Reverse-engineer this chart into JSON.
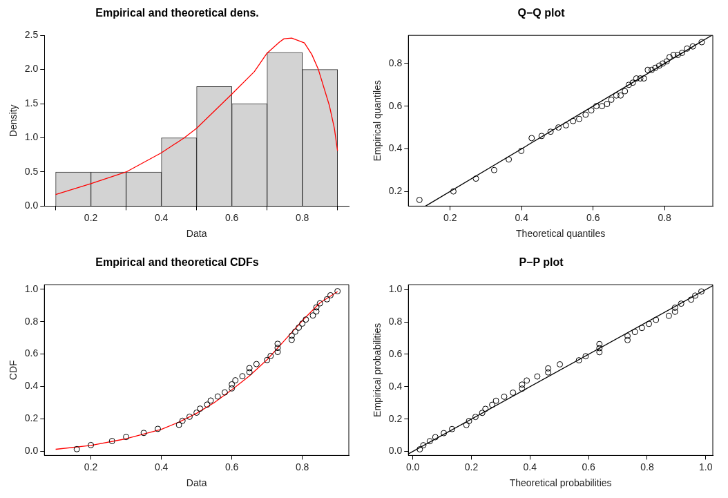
{
  "chart_data": [
    {
      "type": "histogram",
      "title": "Empirical and theoretical dens.",
      "xlabel": "Data",
      "ylabel": "Density",
      "xlim": [
        0.068,
        0.932
      ],
      "ylim": [
        0,
        2.5
      ],
      "xticks": [
        0.2,
        0.4,
        0.6,
        0.8
      ],
      "yticks": [
        {
          "value": 0,
          "label": "0.0"
        },
        0.5,
        {
          "value": 1,
          "label": "1.0"
        },
        1.5,
        {
          "value": 2,
          "label": "2.0"
        },
        2.5
      ],
      "grid": false,
      "series": [
        {
          "type": "histogram",
          "color": "#d3d3d3",
          "bins": [
            0.1,
            0.2,
            0.3,
            0.4,
            0.5,
            0.6,
            0.7,
            0.8,
            0.9
          ],
          "values": [
            0.5,
            0.5,
            0.5,
            1,
            1.75,
            1.5,
            2.25,
            2
          ]
        },
        {
          "type": "line",
          "color": "#ff0000",
          "x": [
            0.1,
            0.2,
            0.3,
            0.4,
            0.465,
            0.5,
            0.6,
            0.664,
            0.7,
            0.735,
            0.748,
            0.77,
            0.806,
            0.827,
            0.845,
            0.877,
            0.891,
            0.9
          ],
          "values": [
            0.17,
            0.33,
            0.5,
            0.78,
            1.0,
            1.14,
            1.64,
            1.97,
            2.24,
            2.4,
            2.45,
            2.46,
            2.39,
            2.22,
            2.01,
            1.47,
            1.14,
            0.81
          ]
        }
      ]
    },
    {
      "type": "scatter",
      "title": "Q−Q plot",
      "xlabel": "Theoretical quantiles",
      "ylabel": "Empirical quantiles",
      "xlim": [
        0.083,
        0.935
      ],
      "ylim": [
        0.131,
        0.932
      ],
      "xticks": [
        0.2,
        0.4,
        0.6,
        0.8
      ],
      "yticks": [
        0.2,
        0.4,
        0.6,
        0.8
      ],
      "grid": false,
      "series": [
        {
          "type": "scatter",
          "marker": "circle",
          "color": "#000000",
          "x": [
            0.114,
            0.209,
            0.272,
            0.323,
            0.364,
            0.399,
            0.428,
            0.456,
            0.481,
            0.503,
            0.524,
            0.544,
            0.561,
            0.579,
            0.595,
            0.609,
            0.625,
            0.639,
            0.651,
            0.665,
            0.677,
            0.689,
            0.7,
            0.711,
            0.721,
            0.732,
            0.742,
            0.753,
            0.764,
            0.774,
            0.785,
            0.795,
            0.806,
            0.814,
            0.825,
            0.837,
            0.849,
            0.863,
            0.879,
            0.904
          ],
          "values": [
            0.16,
            0.2,
            0.26,
            0.3,
            0.35,
            0.39,
            0.45,
            0.46,
            0.48,
            0.5,
            0.51,
            0.53,
            0.54,
            0.56,
            0.58,
            0.6,
            0.6,
            0.61,
            0.63,
            0.65,
            0.65,
            0.67,
            0.7,
            0.71,
            0.73,
            0.73,
            0.73,
            0.77,
            0.77,
            0.78,
            0.79,
            0.8,
            0.81,
            0.83,
            0.84,
            0.84,
            0.85,
            0.87,
            0.88,
            0.9
          ]
        },
        {
          "type": "line",
          "color": "#000000",
          "x": [
            0.131,
            0.932
          ],
          "values": [
            0.131,
            0.932
          ]
        }
      ]
    },
    {
      "type": "scatter",
      "title": "Empirical and theoretical CDFs",
      "xlabel": "Data",
      "ylabel": "CDF",
      "xlim": [
        0.068,
        0.932
      ],
      "ylim": [
        -0.026,
        1.028
      ],
      "xticks": [
        0.2,
        0.4,
        0.6,
        0.8
      ],
      "yticks": [
        {
          "value": 0,
          "label": "0.0"
        },
        0.2,
        0.4,
        0.6,
        0.8,
        {
          "value": 1,
          "label": "1.0"
        }
      ],
      "grid": false,
      "series": [
        {
          "type": "line",
          "color": "#ff0000",
          "x": [
            0.1,
            0.2,
            0.3,
            0.4,
            0.45,
            0.5,
            0.55,
            0.6,
            0.65,
            0.7,
            0.75,
            0.8,
            0.85,
            0.9
          ],
          "values": [
            0.012,
            0.036,
            0.077,
            0.135,
            0.18,
            0.234,
            0.3,
            0.38,
            0.465,
            0.565,
            0.685,
            0.806,
            0.916,
            0.985
          ]
        },
        {
          "type": "scatter",
          "marker": "circle",
          "color": "#000000",
          "x": [
            0.16,
            0.2,
            0.26,
            0.3,
            0.35,
            0.39,
            0.45,
            0.46,
            0.48,
            0.5,
            0.51,
            0.53,
            0.54,
            0.56,
            0.58,
            0.6,
            0.6,
            0.61,
            0.63,
            0.65,
            0.65,
            0.67,
            0.7,
            0.71,
            0.73,
            0.73,
            0.73,
            0.77,
            0.77,
            0.78,
            0.79,
            0.8,
            0.81,
            0.83,
            0.84,
            0.84,
            0.85,
            0.87,
            0.88,
            0.9
          ],
          "values": [
            0.013,
            0.038,
            0.063,
            0.088,
            0.113,
            0.138,
            0.163,
            0.188,
            0.213,
            0.238,
            0.263,
            0.288,
            0.313,
            0.338,
            0.363,
            0.388,
            0.413,
            0.438,
            0.463,
            0.488,
            0.513,
            0.538,
            0.563,
            0.588,
            0.613,
            0.638,
            0.663,
            0.688,
            0.713,
            0.738,
            0.763,
            0.788,
            0.813,
            0.838,
            0.863,
            0.888,
            0.913,
            0.938,
            0.963,
            0.988
          ]
        }
      ]
    },
    {
      "type": "scatter",
      "title": "P−P plot",
      "xlabel": "Theoretical probabilities",
      "ylabel": "Empirical probabilities",
      "xlim": [
        -0.015,
        1.024
      ],
      "ylim": [
        -0.025,
        1.03
      ],
      "xticks": [
        {
          "value": 0,
          "label": "0.0"
        },
        0.2,
        0.4,
        0.6,
        0.8,
        {
          "value": 1,
          "label": "1.0"
        }
      ],
      "yticks": [
        {
          "value": 0,
          "label": "0.0"
        },
        0.2,
        0.4,
        0.6,
        0.8,
        {
          "value": 1,
          "label": "1.0"
        }
      ],
      "grid": false,
      "series": [
        {
          "type": "scatter",
          "marker": "circle",
          "color": "#000000",
          "x": [
            0.024,
            0.036,
            0.058,
            0.077,
            0.106,
            0.134,
            0.183,
            0.192,
            0.214,
            0.237,
            0.248,
            0.271,
            0.284,
            0.312,
            0.342,
            0.373,
            0.373,
            0.389,
            0.425,
            0.462,
            0.462,
            0.502,
            0.567,
            0.59,
            0.637,
            0.637,
            0.637,
            0.733,
            0.733,
            0.758,
            0.782,
            0.806,
            0.83,
            0.874,
            0.895,
            0.895,
            0.916,
            0.95,
            0.964,
            0.985
          ],
          "values": [
            0.013,
            0.038,
            0.063,
            0.088,
            0.113,
            0.138,
            0.163,
            0.188,
            0.213,
            0.238,
            0.263,
            0.288,
            0.313,
            0.338,
            0.363,
            0.388,
            0.413,
            0.438,
            0.463,
            0.488,
            0.513,
            0.538,
            0.563,
            0.588,
            0.613,
            0.638,
            0.663,
            0.688,
            0.713,
            0.738,
            0.763,
            0.788,
            0.813,
            0.838,
            0.863,
            0.888,
            0.913,
            0.938,
            0.963,
            0.988
          ]
        },
        {
          "type": "line",
          "color": "#000000",
          "x": [
            -0.015,
            1.024
          ],
          "values": [
            -0.015,
            1.024
          ]
        }
      ]
    }
  ]
}
